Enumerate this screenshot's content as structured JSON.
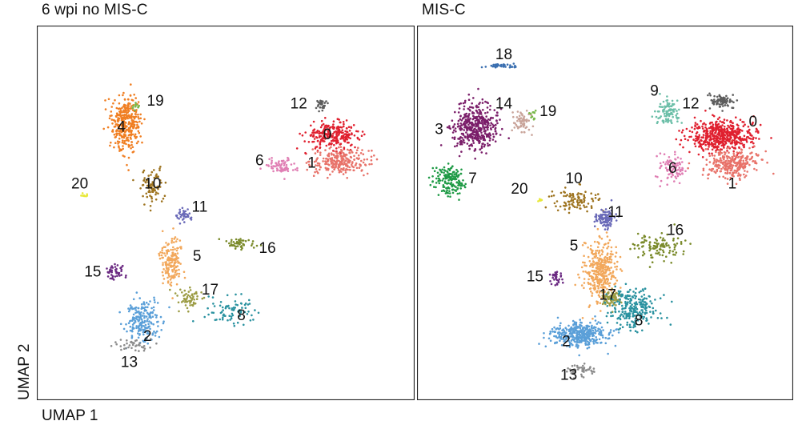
{
  "chart_data": {
    "type": "scatter",
    "xlabel": "UMAP 1",
    "ylabel": "UMAP 2",
    "cluster_colors": {
      "0": "#e0202f",
      "1": "#e8736a",
      "2": "#5a9fd8",
      "3": "#7b1f6a",
      "4": "#f07f23",
      "5": "#f2a85c",
      "6": "#e07fb4",
      "7": "#1e9a45",
      "8": "#2a92a0",
      "9": "#6cbfa8",
      "10": "#9e7420",
      "11": "#6a6ab8",
      "12": "#5d5d5d",
      "13": "#8c8c8c",
      "14": "#c9a49a",
      "15": "#6b2a82",
      "16": "#7a8a2a",
      "17": "#9c9c45",
      "18": "#3a6fb0",
      "19": "#79b84a",
      "20": "#e8e83a"
    },
    "panels": [
      {
        "title": "6 wpi no MIS-C",
        "clusters": [
          {
            "id": "0",
            "label": "0",
            "center": [
              8.1,
              8.5
            ],
            "spread": [
              0.95,
              0.45
            ],
            "count": 260,
            "label_pos": [
              7.9,
              8.5
            ]
          },
          {
            "id": "1",
            "label": "1",
            "center": [
              8.4,
              7.5
            ],
            "spread": [
              1.0,
              0.45
            ],
            "count": 240,
            "label_pos": [
              7.3,
              7.4
            ]
          },
          {
            "id": "12",
            "label": "12",
            "center": [
              7.7,
              9.7
            ],
            "spread": [
              0.25,
              0.2
            ],
            "count": 30,
            "label_pos": [
              6.8,
              9.7
            ]
          },
          {
            "id": "6",
            "label": "6",
            "center": [
              6.1,
              7.3
            ],
            "spread": [
              0.55,
              0.3
            ],
            "count": 70,
            "label_pos": [
              5.3,
              7.5
            ]
          },
          {
            "id": "4",
            "label": "4",
            "center": [
              0.2,
              9.0
            ],
            "spread": [
              0.5,
              1.0
            ],
            "count": 340,
            "label_pos": [
              0.0,
              8.8
            ]
          },
          {
            "id": "19",
            "label": "19",
            "center": [
              0.55,
              9.6
            ],
            "spread": [
              0.12,
              0.12
            ],
            "count": 12,
            "label_pos": [
              1.3,
              9.8
            ]
          },
          {
            "id": "20",
            "label": "20",
            "center": [
              -1.4,
              6.2
            ],
            "spread": [
              0.12,
              0.06
            ],
            "count": 8,
            "label_pos": [
              -1.6,
              6.6
            ]
          },
          {
            "id": "10",
            "label": "10",
            "center": [
              1.2,
              6.5
            ],
            "spread": [
              0.5,
              0.55
            ],
            "count": 80,
            "label_pos": [
              1.2,
              6.6
            ]
          },
          {
            "id": "11",
            "label": "11",
            "center": [
              2.4,
              5.4
            ],
            "spread": [
              0.25,
              0.25
            ],
            "count": 40,
            "label_pos": [
              3.0,
              5.7
            ]
          },
          {
            "id": "16",
            "label": "16",
            "center": [
              4.5,
              4.3
            ],
            "spread": [
              0.6,
              0.2
            ],
            "count": 50,
            "label_pos": [
              5.6,
              4.1
            ]
          },
          {
            "id": "5",
            "label": "5",
            "center": [
              1.9,
              3.7
            ],
            "spread": [
              0.4,
              0.85
            ],
            "count": 170,
            "label_pos": [
              2.9,
              3.8
            ]
          },
          {
            "id": "15",
            "label": "15",
            "center": [
              -0.2,
              3.2
            ],
            "spread": [
              0.35,
              0.3
            ],
            "count": 45,
            "label_pos": [
              -1.1,
              3.2
            ]
          },
          {
            "id": "17",
            "label": "17",
            "center": [
              2.6,
              2.2
            ],
            "spread": [
              0.5,
              0.35
            ],
            "count": 60,
            "label_pos": [
              3.4,
              2.5
            ]
          },
          {
            "id": "8",
            "label": "8",
            "center": [
              4.3,
              1.7
            ],
            "spread": [
              0.9,
              0.6
            ],
            "count": 80,
            "label_pos": [
              4.6,
              1.5
            ]
          },
          {
            "id": "2",
            "label": "2",
            "center": [
              0.8,
              1.3
            ],
            "spread": [
              0.6,
              0.7
            ],
            "count": 200,
            "label_pos": [
              1.0,
              0.7
            ]
          },
          {
            "id": "13",
            "label": "13",
            "center": [
              0.5,
              0.4
            ],
            "spread": [
              0.7,
              0.25
            ],
            "count": 40,
            "label_pos": [
              0.3,
              -0.3
            ]
          }
        ]
      },
      {
        "title": "MIS-C",
        "clusters": [
          {
            "id": "0",
            "label": "0",
            "center": [
              8.5,
              8.5
            ],
            "spread": [
              1.1,
              0.55
            ],
            "count": 520,
            "label_pos": [
              9.7,
              9.0
            ]
          },
          {
            "id": "1",
            "label": "1",
            "center": [
              8.9,
              7.4
            ],
            "spread": [
              0.9,
              0.5
            ],
            "count": 280,
            "label_pos": [
              8.9,
              6.6
            ]
          },
          {
            "id": "12",
            "label": "12",
            "center": [
              8.5,
              9.8
            ],
            "spread": [
              0.4,
              0.25
            ],
            "count": 80,
            "label_pos": [
              7.3,
              9.7
            ]
          },
          {
            "id": "9",
            "label": "9",
            "center": [
              6.4,
              9.4
            ],
            "spread": [
              0.4,
              0.45
            ],
            "count": 100,
            "label_pos": [
              5.9,
              10.2
            ]
          },
          {
            "id": "6",
            "label": "6",
            "center": [
              6.6,
              7.2
            ],
            "spread": [
              0.45,
              0.55
            ],
            "count": 90,
            "label_pos": [
              6.6,
              7.2
            ]
          },
          {
            "id": "18",
            "label": "18",
            "center": [
              0.0,
              11.2
            ],
            "spread": [
              0.5,
              0.08
            ],
            "count": 35,
            "label_pos": [
              0.1,
              11.6
            ]
          },
          {
            "id": "3",
            "label": "3",
            "center": [
              -1.0,
              8.8
            ],
            "spread": [
              0.8,
              0.8
            ],
            "count": 420,
            "label_pos": [
              -2.4,
              8.7
            ]
          },
          {
            "id": "14",
            "label": "14",
            "center": [
              0.8,
              9.0
            ],
            "spread": [
              0.35,
              0.4
            ],
            "count": 60,
            "label_pos": [
              0.1,
              9.7
            ]
          },
          {
            "id": "19",
            "label": "19",
            "center": [
              1.2,
              9.3
            ],
            "spread": [
              0.15,
              0.15
            ],
            "count": 12,
            "label_pos": [
              1.8,
              9.4
            ]
          },
          {
            "id": "7",
            "label": "7",
            "center": [
              -2.0,
              6.8
            ],
            "spread": [
              0.55,
              0.5
            ],
            "count": 160,
            "label_pos": [
              -1.1,
              6.8
            ]
          },
          {
            "id": "20",
            "label": "20",
            "center": [
              1.5,
              6.0
            ],
            "spread": [
              0.1,
              0.05
            ],
            "count": 10,
            "label_pos": [
              0.7,
              6.4
            ]
          },
          {
            "id": "10",
            "label": "10",
            "center": [
              2.8,
              6.0
            ],
            "spread": [
              0.8,
              0.4
            ],
            "count": 100,
            "label_pos": [
              2.8,
              6.8
            ]
          },
          {
            "id": "11",
            "label": "11",
            "center": [
              4.0,
              5.3
            ],
            "spread": [
              0.35,
              0.3
            ],
            "count": 100,
            "label_pos": [
              4.4,
              5.5
            ]
          },
          {
            "id": "16",
            "label": "16",
            "center": [
              6.0,
              4.2
            ],
            "spread": [
              0.9,
              0.5
            ],
            "count": 110,
            "label_pos": [
              6.7,
              4.8
            ]
          },
          {
            "id": "5",
            "label": "5",
            "center": [
              3.8,
              3.3
            ],
            "spread": [
              0.55,
              1.0
            ],
            "count": 360,
            "label_pos": [
              2.8,
              4.2
            ]
          },
          {
            "id": "15",
            "label": "15",
            "center": [
              2.1,
              3.0
            ],
            "spread": [
              0.3,
              0.25
            ],
            "count": 30,
            "label_pos": [
              1.3,
              3.0
            ]
          },
          {
            "id": "17",
            "label": "17",
            "center": [
              4.2,
              2.2
            ],
            "spread": [
              0.35,
              0.3
            ],
            "count": 80,
            "label_pos": [
              4.1,
              2.3
            ]
          },
          {
            "id": "8",
            "label": "8",
            "center": [
              5.1,
              1.8
            ],
            "spread": [
              0.8,
              0.75
            ],
            "count": 250,
            "label_pos": [
              5.3,
              1.3
            ]
          },
          {
            "id": "2",
            "label": "2",
            "center": [
              3.0,
              0.8
            ],
            "spread": [
              1.0,
              0.45
            ],
            "count": 380,
            "label_pos": [
              2.5,
              0.5
            ]
          },
          {
            "id": "13",
            "label": "13",
            "center": [
              3.0,
              -0.6
            ],
            "spread": [
              0.45,
              0.2
            ],
            "count": 50,
            "label_pos": [
              2.6,
              -0.8
            ]
          }
        ]
      }
    ],
    "xlim": [
      -3,
      11
    ],
    "ylim": [
      -1.5,
      12.5
    ],
    "grid": false,
    "legend": "none"
  }
}
